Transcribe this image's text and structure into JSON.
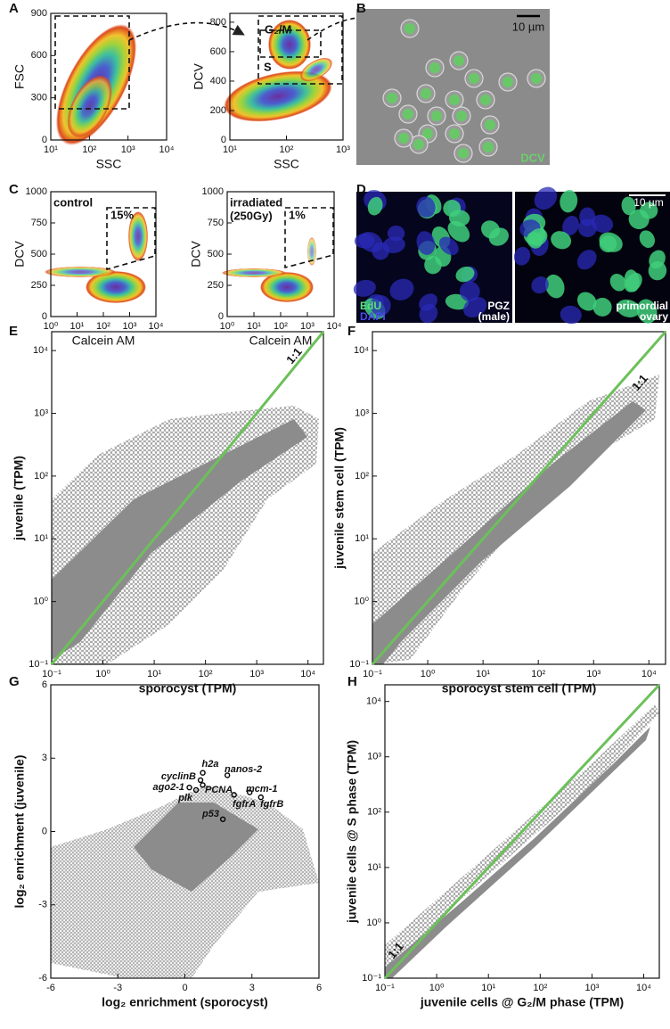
{
  "panel_letters": [
    "A",
    "B",
    "C",
    "D",
    "E",
    "F",
    "G",
    "H"
  ],
  "plots": [
    {
      "xlabel": "SSC",
      "ylabel": "FSC",
      "xscale": "log",
      "yscale": "linear",
      "xlim": [
        10,
        10000
      ],
      "ylim": [
        0,
        900
      ],
      "xticks": [
        {
          "value": 10,
          "label": "10¹"
        },
        {
          "value": 100,
          "label": "10²"
        },
        {
          "value": 1000,
          "label": "10³"
        },
        {
          "value": 10000,
          "label": "10⁴"
        }
      ],
      "yticks": [
        0,
        300,
        600,
        900
      ],
      "annotations": []
    },
    {
      "xlabel": "SSC",
      "ylabel": "DCV",
      "xscale": "log",
      "yscale": "linear",
      "xlim": [
        10,
        1000
      ],
      "ylim": [
        0,
        860
      ],
      "xticks": [
        {
          "value": 10,
          "label": "10¹"
        },
        {
          "value": 100,
          "label": "10²"
        },
        {
          "value": 1000,
          "label": "10³"
        }
      ],
      "yticks": [
        0,
        200,
        400,
        600,
        800
      ],
      "annotations": [
        "G₂/M",
        "S"
      ]
    },
    {
      "xlabel": "Calcein AM",
      "ylabel": "DCV",
      "xscale": "log",
      "yscale": "linear",
      "xlim": [
        1,
        10000
      ],
      "ylim": [
        0,
        1000
      ],
      "xticks": [
        {
          "value": 1,
          "label": "10⁰"
        },
        {
          "value": 10,
          "label": "10¹"
        },
        {
          "value": 100,
          "label": "10²"
        },
        {
          "value": 1000,
          "label": "10³"
        },
        {
          "value": 10000,
          "label": "10⁴"
        }
      ],
      "yticks": [
        0,
        250,
        500,
        750,
        1000
      ],
      "annotations": [
        "control",
        "15%"
      ]
    },
    {
      "xlabel": "Calcein AM",
      "ylabel": "DCV",
      "xscale": "log",
      "yscale": "linear",
      "xlim": [
        1,
        10000
      ],
      "ylim": [
        0,
        1000
      ],
      "xticks": [
        {
          "value": 1,
          "label": "10⁰"
        },
        {
          "value": 10,
          "label": "10¹"
        },
        {
          "value": 100,
          "label": "10²"
        },
        {
          "value": 1000,
          "label": "10³"
        },
        {
          "value": 10000,
          "label": "10⁴"
        }
      ],
      "yticks": [
        0,
        250,
        500,
        750,
        1000
      ],
      "annotations": [
        "irradiated",
        "(250Gy)",
        "1%"
      ]
    },
    {
      "xlabel": "sporocyst (TPM)",
      "ylabel": "juvenile (TPM)",
      "xscale": "log",
      "yscale": "log",
      "xlim": [
        0.1,
        20000
      ],
      "ylim": [
        0.1,
        20000
      ],
      "xticks": [
        {
          "value": 0.1,
          "label": "10⁻¹"
        },
        {
          "value": 1,
          "label": "10⁰"
        },
        {
          "value": 10,
          "label": "10¹"
        },
        {
          "value": 100,
          "label": "10²"
        },
        {
          "value": 1000,
          "label": "10³"
        },
        {
          "value": 10000,
          "label": "10⁴"
        }
      ],
      "yticks": [
        {
          "value": 0.1,
          "label": "10⁻¹"
        },
        {
          "value": 1,
          "label": "10⁰"
        },
        {
          "value": 10,
          "label": "10¹"
        },
        {
          "value": 100,
          "label": "10²"
        },
        {
          "value": 1000,
          "label": "10³"
        },
        {
          "value": 10000,
          "label": "10⁴"
        }
      ],
      "diagonal_color": "#6cc05a",
      "annotations": [
        "1:1"
      ]
    },
    {
      "xlabel": "sporocyst stem cell (TPM)",
      "ylabel": "juvenile stem cell (TPM)",
      "xscale": "log",
      "yscale": "log",
      "xlim": [
        0.1,
        20000
      ],
      "ylim": [
        0.1,
        20000
      ],
      "xticks": [
        {
          "value": 0.1,
          "label": "10⁻¹"
        },
        {
          "value": 1,
          "label": "10⁰"
        },
        {
          "value": 10,
          "label": "10¹"
        },
        {
          "value": 100,
          "label": "10²"
        },
        {
          "value": 1000,
          "label": "10³"
        },
        {
          "value": 10000,
          "label": "10⁴"
        }
      ],
      "yticks": [
        {
          "value": 0.1,
          "label": "10⁻¹"
        },
        {
          "value": 1,
          "label": "10⁰"
        },
        {
          "value": 10,
          "label": "10¹"
        },
        {
          "value": 100,
          "label": "10²"
        },
        {
          "value": 1000,
          "label": "10³"
        },
        {
          "value": 10000,
          "label": "10⁴"
        }
      ],
      "diagonal_color": "#6cc05a",
      "annotations": [
        "1:1"
      ]
    },
    {
      "xlabel": "log₂ enrichment (sporocyst)",
      "ylabel": "log₂ enrichment (juvenile)",
      "xscale": "linear",
      "yscale": "linear",
      "xlim": [
        -6,
        6
      ],
      "ylim": [
        -6,
        6
      ],
      "xticks": [
        -6,
        -3,
        0,
        3,
        6
      ],
      "yticks": [
        -6,
        -3,
        0,
        3,
        6
      ],
      "annotations": [],
      "points": [
        {
          "label": "h2a",
          "x": 0.8,
          "y": 2.4
        },
        {
          "label": "nanos-2",
          "x": 1.9,
          "y": 2.3
        },
        {
          "label": "cyclinB",
          "x": 0.7,
          "y": 2.1
        },
        {
          "label": "ago2-1",
          "x": 0.2,
          "y": 1.8
        },
        {
          "label": "PCNA",
          "x": 0.8,
          "y": 1.9
        },
        {
          "label": "plk",
          "x": 0.5,
          "y": 1.7
        },
        {
          "label": "mcm-1",
          "x": 2.9,
          "y": 1.6
        },
        {
          "label": "fgfrA",
          "x": 2.2,
          "y": 1.5
        },
        {
          "label": "fgfrB",
          "x": 3.4,
          "y": 1.4
        },
        {
          "label": "p53",
          "x": 1.7,
          "y": 0.5
        }
      ]
    },
    {
      "xlabel": "juvenile cells @ G₂/M phase (TPM)",
      "ylabel": "juvenile cells @ S phase (TPM)",
      "xscale": "log",
      "yscale": "log",
      "xlim": [
        0.1,
        20000
      ],
      "ylim": [
        0.1,
        20000
      ],
      "xticks": [
        {
          "value": 0.1,
          "label": "10⁻¹"
        },
        {
          "value": 1,
          "label": "10⁰"
        },
        {
          "value": 10,
          "label": "10¹"
        },
        {
          "value": 100,
          "label": "10²"
        },
        {
          "value": 1000,
          "label": "10³"
        },
        {
          "value": 10000,
          "label": "10⁴"
        }
      ],
      "yticks": [
        {
          "value": 0.1,
          "label": "10⁻¹"
        },
        {
          "value": 1,
          "label": "10⁰"
        },
        {
          "value": 10,
          "label": "10¹"
        },
        {
          "value": 100,
          "label": "10²"
        },
        {
          "value": 1000,
          "label": "10³"
        },
        {
          "value": 10000,
          "label": "10⁴"
        }
      ],
      "diagonal_color": "#6cc05a",
      "annotations": [
        "1:1"
      ]
    }
  ],
  "image_b": {
    "scale_bar": "10 µm",
    "label": "DCV"
  },
  "image_d": {
    "scale_bar": "10 µm",
    "stain_1": "EdU",
    "stain_2": "DAPI",
    "left_caption": [
      "PGZ",
      "(male)"
    ],
    "right_caption": [
      "primordial",
      "ovary"
    ]
  }
}
